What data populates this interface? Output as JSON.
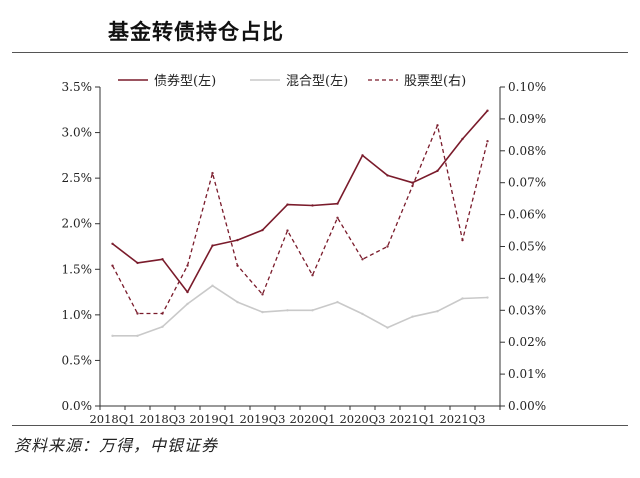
{
  "page_title": "基金转债持仓占比",
  "source": "资料来源：万得，中银证券",
  "colors": {
    "bond": "#7a1b2b",
    "mixed": "#c9c9c9",
    "equity": "#7a1b2b"
  },
  "chart_data": {
    "type": "line",
    "categories": [
      "2018Q1",
      "2018Q2",
      "2018Q3",
      "2018Q4",
      "2019Q1",
      "2019Q2",
      "2019Q3",
      "2019Q4",
      "2020Q1",
      "2020Q2",
      "2020Q3",
      "2020Q4",
      "2021Q1",
      "2021Q2",
      "2021Q3",
      "2021Q4"
    ],
    "x_tick_labels": [
      "2018Q1",
      "2018Q3",
      "2019Q1",
      "2019Q3",
      "2020Q1",
      "2020Q3",
      "2021Q1",
      "2021Q3"
    ],
    "y_left": {
      "min": 0,
      "max": 3.5,
      "step": 0.5,
      "ticks": [
        "0.0%",
        "0.5%",
        "1.0%",
        "1.5%",
        "2.0%",
        "2.5%",
        "3.0%",
        "3.5%"
      ]
    },
    "y_right": {
      "min": 0,
      "max": 0.1,
      "step": 0.01,
      "ticks": [
        "0.00%",
        "0.01%",
        "0.02%",
        "0.03%",
        "0.04%",
        "0.05%",
        "0.06%",
        "0.07%",
        "0.08%",
        "0.09%",
        "0.10%"
      ]
    },
    "grid": false,
    "legend_position": "top",
    "series": [
      {
        "name": "债券型(左)",
        "axis": "left",
        "style": "solid",
        "values": [
          1.78,
          1.57,
          1.61,
          1.25,
          1.76,
          1.82,
          1.93,
          2.21,
          2.2,
          2.22,
          2.75,
          2.53,
          2.45,
          2.58,
          2.93,
          3.24
        ]
      },
      {
        "name": "混合型(左)",
        "axis": "left",
        "style": "light",
        "values": [
          0.77,
          0.77,
          0.87,
          1.12,
          1.32,
          1.14,
          1.03,
          1.05,
          1.05,
          1.14,
          1.01,
          0.86,
          0.98,
          1.04,
          1.18,
          1.19
        ]
      },
      {
        "name": "股票型(右)",
        "axis": "right",
        "style": "dashed",
        "values": [
          0.044,
          0.029,
          0.029,
          0.044,
          0.073,
          0.044,
          0.035,
          0.055,
          0.041,
          0.059,
          0.046,
          0.05,
          0.069,
          0.088,
          0.052,
          0.083
        ]
      }
    ]
  }
}
